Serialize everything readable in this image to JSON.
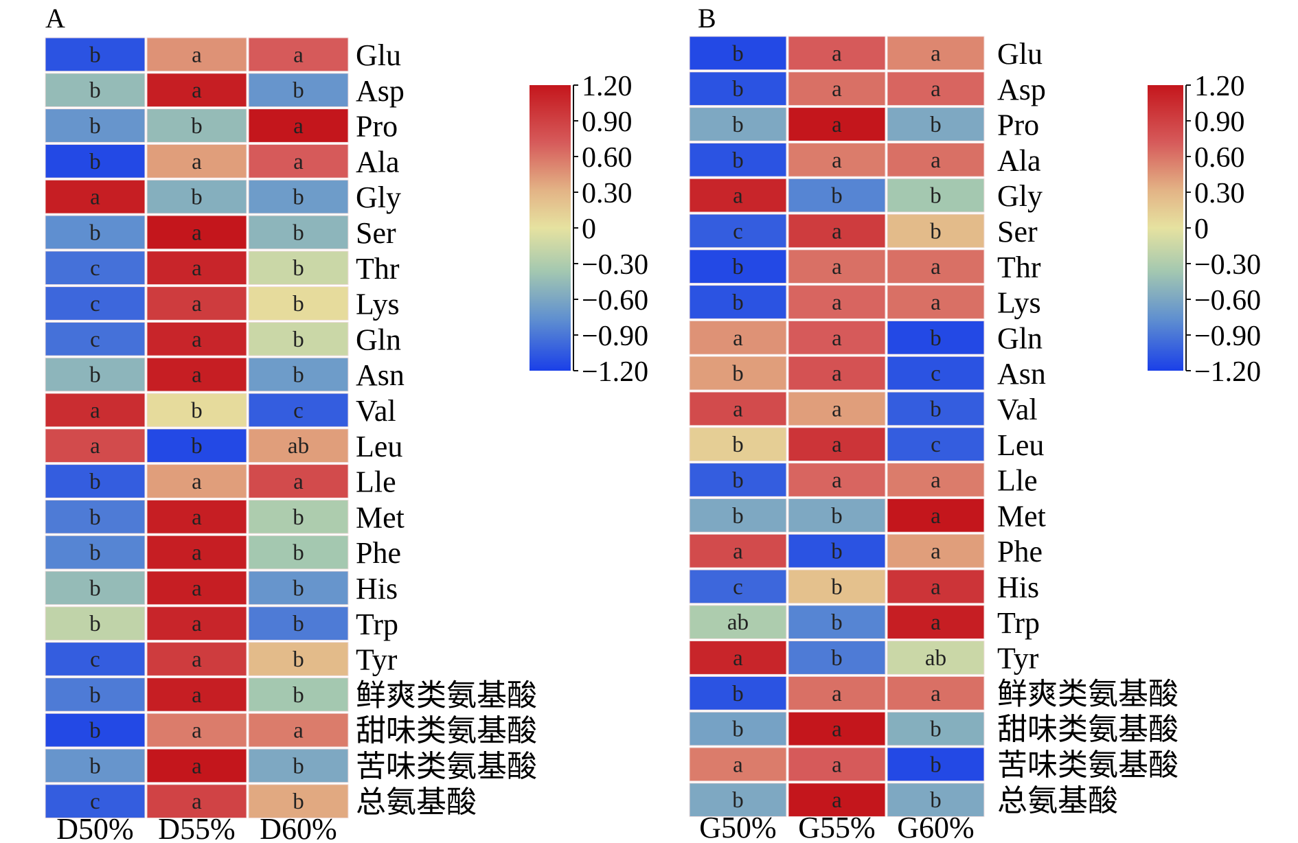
{
  "chart_data": [
    {
      "type": "heatmap",
      "panel": "A",
      "columns": [
        "D50%",
        "D55%",
        "D60%"
      ],
      "rows": [
        "Glu",
        "Asp",
        "Pro",
        "Ala",
        "Gly",
        "Ser",
        "Thr",
        "Lys",
        "Gln",
        "Asn",
        "Val",
        "Leu",
        "Lle",
        "Met",
        "Phe",
        "His",
        "Trp",
        "Tyr",
        "鲜爽类氨基酸",
        "甜味类氨基酸",
        "苦味类氨基酸",
        "总氨基酸"
      ],
      "values": [
        [
          -1.1,
          0.5,
          0.75
        ],
        [
          -0.45,
          1.15,
          -0.75
        ],
        [
          -0.75,
          -0.45,
          1.2
        ],
        [
          -1.15,
          0.45,
          0.75
        ],
        [
          1.15,
          -0.55,
          -0.7
        ],
        [
          -0.8,
          1.2,
          -0.5
        ],
        [
          -0.95,
          1.1,
          -0.15
        ],
        [
          -1.0,
          0.95,
          0.05
        ],
        [
          -0.95,
          1.1,
          -0.15
        ],
        [
          -0.5,
          1.15,
          -0.7
        ],
        [
          1.05,
          0.05,
          -1.05
        ],
        [
          0.85,
          -1.15,
          0.45
        ],
        [
          -1.05,
          0.45,
          0.85
        ],
        [
          -0.9,
          1.15,
          -0.3
        ],
        [
          -0.85,
          1.15,
          -0.35
        ],
        [
          -0.45,
          1.15,
          -0.75
        ],
        [
          -0.2,
          1.1,
          -0.9
        ],
        [
          -1.05,
          0.95,
          0.3
        ],
        [
          -0.9,
          1.15,
          -0.35
        ],
        [
          -1.15,
          0.6,
          0.6
        ],
        [
          -0.75,
          1.2,
          -0.6
        ],
        [
          -1.05,
          0.9,
          0.4
        ]
      ],
      "annotations": [
        [
          "b",
          "a",
          "a"
        ],
        [
          "b",
          "a",
          "b"
        ],
        [
          "b",
          "b",
          "a"
        ],
        [
          "b",
          "a",
          "a"
        ],
        [
          "a",
          "b",
          "b"
        ],
        [
          "b",
          "a",
          "b"
        ],
        [
          "c",
          "a",
          "b"
        ],
        [
          "c",
          "a",
          "b"
        ],
        [
          "c",
          "a",
          "b"
        ],
        [
          "b",
          "a",
          "b"
        ],
        [
          "a",
          "b",
          "c"
        ],
        [
          "a",
          "b",
          "ab"
        ],
        [
          "b",
          "a",
          "a"
        ],
        [
          "b",
          "a",
          "b"
        ],
        [
          "b",
          "a",
          "b"
        ],
        [
          "b",
          "a",
          "b"
        ],
        [
          "b",
          "a",
          "b"
        ],
        [
          "c",
          "a",
          "b"
        ],
        [
          "b",
          "a",
          "b"
        ],
        [
          "b",
          "a",
          "a"
        ],
        [
          "b",
          "a",
          "b"
        ],
        [
          "c",
          "a",
          "b"
        ]
      ],
      "colorbar": {
        "min": -1.2,
        "max": 1.2,
        "ticks": [
          "1.20",
          "0.90",
          "0.60",
          "0.30",
          "0",
          "−0.30",
          "−0.60",
          "−0.90",
          "−1.20"
        ]
      }
    },
    {
      "type": "heatmap",
      "panel": "B",
      "columns": [
        "G50%",
        "G55%",
        "G60%"
      ],
      "rows": [
        "Glu",
        "Asp",
        "Pro",
        "Ala",
        "Gly",
        "Ser",
        "Thr",
        "Lys",
        "Gln",
        "Asn",
        "Val",
        "Leu",
        "Lle",
        "Met",
        "Phe",
        "His",
        "Trp",
        "Tyr",
        "鲜爽类氨基酸",
        "甜味类氨基酸",
        "苦味类氨基酸",
        "总氨基酸"
      ],
      "values": [
        [
          -1.15,
          0.75,
          0.55
        ],
        [
          -1.1,
          0.65,
          0.7
        ],
        [
          -0.6,
          1.2,
          -0.6
        ],
        [
          -1.1,
          0.6,
          0.65
        ],
        [
          1.1,
          -0.85,
          -0.35
        ],
        [
          -1.05,
          0.95,
          0.3
        ],
        [
          -1.15,
          0.65,
          0.65
        ],
        [
          -1.1,
          0.7,
          0.65
        ],
        [
          0.5,
          0.75,
          -1.15
        ],
        [
          0.45,
          0.8,
          -1.1
        ],
        [
          0.85,
          0.45,
          -1.05
        ],
        [
          0.15,
          1.0,
          -1.05
        ],
        [
          -1.05,
          0.7,
          0.6
        ],
        [
          -0.6,
          -0.6,
          1.2
        ],
        [
          0.85,
          -1.1,
          0.45
        ],
        [
          -1.0,
          0.25,
          1.0
        ],
        [
          -0.3,
          -0.85,
          1.15
        ],
        [
          1.1,
          -0.9,
          -0.15
        ],
        [
          -1.1,
          0.65,
          0.65
        ],
        [
          -0.65,
          1.2,
          -0.55
        ],
        [
          0.6,
          0.75,
          -1.15
        ],
        [
          -0.6,
          1.2,
          -0.6
        ]
      ],
      "annotations": [
        [
          "b",
          "a",
          "a"
        ],
        [
          "b",
          "a",
          "a"
        ],
        [
          "b",
          "a",
          "b"
        ],
        [
          "b",
          "a",
          "a"
        ],
        [
          "a",
          "b",
          "b"
        ],
        [
          "c",
          "a",
          "b"
        ],
        [
          "b",
          "a",
          "a"
        ],
        [
          "b",
          "a",
          "a"
        ],
        [
          "a",
          "a",
          "b"
        ],
        [
          "b",
          "a",
          "c"
        ],
        [
          "a",
          "a",
          "b"
        ],
        [
          "b",
          "a",
          "c"
        ],
        [
          "b",
          "a",
          "a"
        ],
        [
          "b",
          "b",
          "a"
        ],
        [
          "a",
          "b",
          "a"
        ],
        [
          "c",
          "b",
          "a"
        ],
        [
          "ab",
          "b",
          "a"
        ],
        [
          "a",
          "b",
          "ab"
        ],
        [
          "b",
          "a",
          "a"
        ],
        [
          "b",
          "a",
          "b"
        ],
        [
          "a",
          "a",
          "b"
        ],
        [
          "b",
          "a",
          "b"
        ]
      ],
      "colorbar": {
        "min": -1.2,
        "max": 1.2,
        "ticks": [
          "1.20",
          "0.90",
          "0.60",
          "0.30",
          "0",
          "−0.30",
          "−0.60",
          "−0.90",
          "−1.20"
        ]
      }
    }
  ],
  "colors": {
    "scale": [
      "#1a3fe8",
      "#5f8fd0",
      "#a4c8b0",
      "#e6e2a0",
      "#e3b486",
      "#d65a5a",
      "#c4161c"
    ]
  }
}
